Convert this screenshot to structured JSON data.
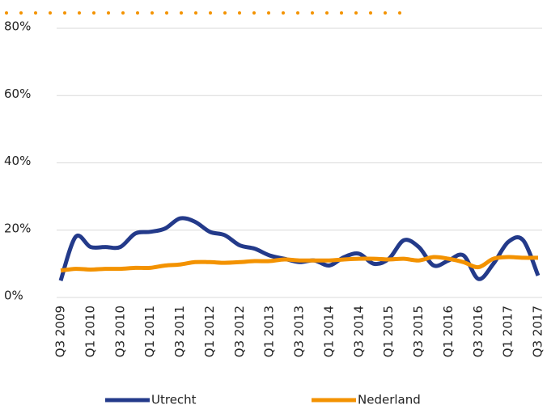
{
  "chart_data": {
    "type": "line",
    "categories": [
      "Q3 2009",
      null,
      "Q1 2010",
      null,
      "Q3 2010",
      null,
      "Q1 2011",
      null,
      "Q3 2011",
      null,
      "Q1 2012",
      null,
      "Q3 2012",
      null,
      "Q1 2013",
      null,
      "Q3 2013",
      null,
      "Q1 2014",
      null,
      "Q3 2014",
      null,
      "Q1 2015",
      null,
      "Q3 2015",
      null,
      "Q1 2016",
      null,
      "Q3 2016",
      null,
      "Q1 2017",
      null,
      "Q3 2017"
    ],
    "series": [
      {
        "name": "Utrecht",
        "color": "#233a8a",
        "values": [
          5,
          18,
          15,
          15,
          15,
          19,
          19.5,
          20.5,
          23.5,
          22.5,
          19.5,
          18.5,
          15.5,
          14.5,
          12.5,
          11.5,
          10.5,
          11,
          9.5,
          12,
          13,
          10,
          11.5,
          17,
          15,
          9.5,
          11,
          12.5,
          5.5,
          10,
          16.5,
          17,
          6.5
        ]
      },
      {
        "name": "Nederland",
        "color": "#f39200",
        "values": [
          8,
          8.5,
          8.3,
          8.5,
          8.5,
          8.8,
          8.8,
          9.5,
          9.8,
          10.5,
          10.5,
          10.3,
          10.5,
          10.8,
          10.8,
          11.3,
          11,
          11,
          11,
          11.3,
          11.5,
          11.5,
          11.3,
          11.5,
          11,
          12,
          11.5,
          10.5,
          9,
          11.5,
          12,
          11.8,
          11.8
        ]
      }
    ],
    "ylim": [
      0,
      80
    ],
    "yticks": [
      {
        "value": 0,
        "label": "0%"
      },
      {
        "value": 20,
        "label": "20%"
      },
      {
        "value": 40,
        "label": "40%"
      },
      {
        "value": 60,
        "label": "60%"
      },
      {
        "value": 80,
        "label": "80%"
      }
    ],
    "grid": true
  }
}
